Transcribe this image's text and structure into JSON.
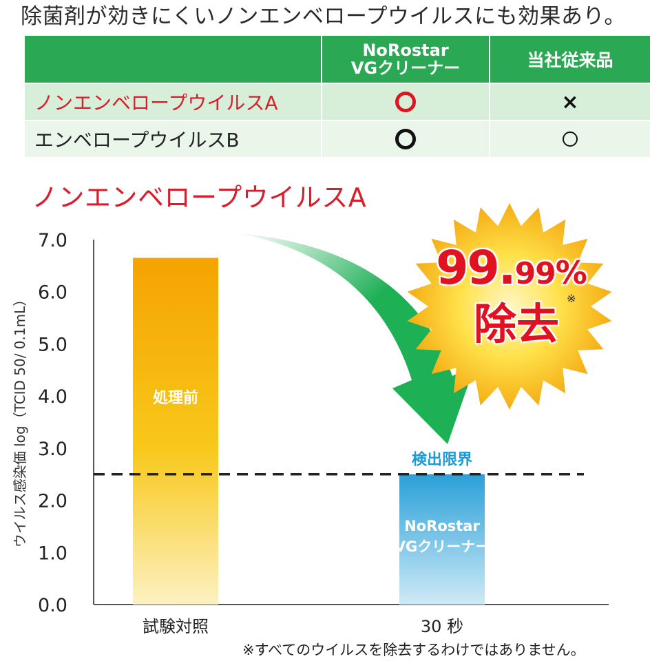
{
  "headline": "除菌剤が効きにくいノンエンベロープウイルスにも効果あり。",
  "comparison_table": {
    "header": {
      "product_line1": "NoRostar",
      "product_line2": "VGクリーナー",
      "conventional": "当社従来品"
    },
    "rows": [
      {
        "name": "ノンエンベロープウイルスA",
        "product_mark": "〇",
        "conventional_mark": "×"
      },
      {
        "name": "エンベロープウイルスB",
        "product_mark": "〇",
        "conventional_mark": "○"
      }
    ]
  },
  "chart_title": "ノンエンベロープウイルスA",
  "chart_data": {
    "type": "bar",
    "categories": [
      "試験対照",
      "30 秒"
    ],
    "values": [
      6.65,
      2.5
    ],
    "bar_labels": [
      "処理前",
      "NoRostar\nVGクリーナー"
    ],
    "ylabel": "ウイルス感染価 log（TCID 50/ 0.1mL）",
    "ylim": [
      0,
      7.0
    ],
    "yticks": [
      "0.0",
      "1.0",
      "2.0",
      "3.0",
      "4.0",
      "5.0",
      "6.0",
      "7.0"
    ],
    "detection_limit": {
      "value": 2.5,
      "label": "検出限界"
    },
    "colors": {
      "bar1_top": "#f5a300",
      "bar1_mid": "#f8c81a",
      "bar1_bottom": "#fdf1c2",
      "bar2_top": "#2aa0d8",
      "bar2_bottom": "#cfeaf7",
      "arrow": "#1eb055",
      "detection_label": "#1a9ad6"
    }
  },
  "badge": {
    "number_big": "99.",
    "number_small": "99",
    "percent": "%",
    "main": "除去",
    "note_mark": "※"
  },
  "footnote": "※すべてのウイルスを除去するわけではありません。"
}
